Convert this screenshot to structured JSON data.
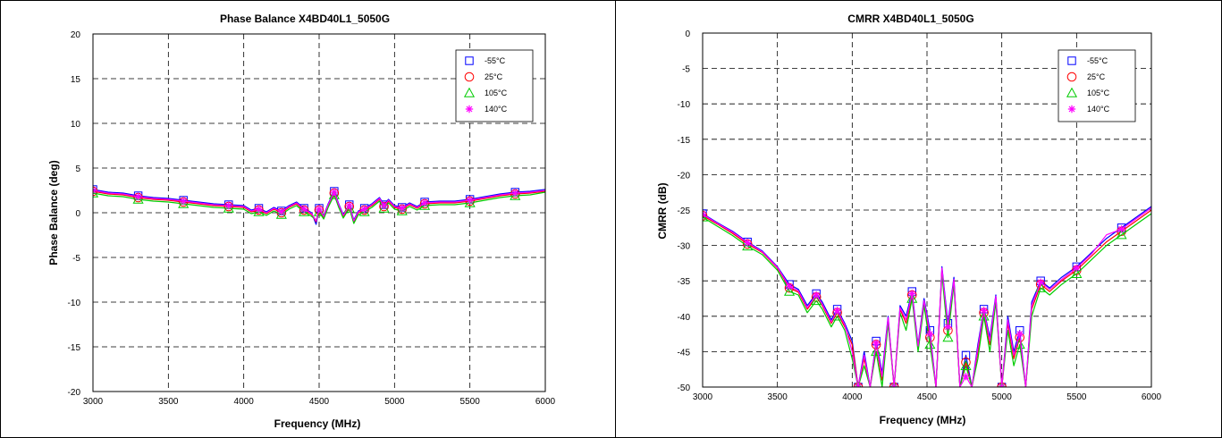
{
  "chart_data": [
    {
      "type": "line",
      "title": "Phase Balance  X4BD40L1_5050G",
      "xlabel": "Frequency (MHz)",
      "ylabel": "Phase Balance (deg)",
      "xlim": [
        3000,
        6000
      ],
      "ylim": [
        -20,
        20
      ],
      "xticks": [
        3000,
        3500,
        4000,
        4500,
        5000,
        5500,
        6000
      ],
      "yticks": [
        -20,
        -15,
        -10,
        -5,
        0,
        5,
        10,
        15,
        20
      ],
      "grid": true,
      "legend_position": "top-right",
      "x": [
        3000,
        3100,
        3200,
        3300,
        3400,
        3500,
        3600,
        3700,
        3800,
        3900,
        4000,
        4050,
        4100,
        4150,
        4200,
        4250,
        4300,
        4350,
        4400,
        4450,
        4480,
        4500,
        4530,
        4560,
        4600,
        4630,
        4660,
        4700,
        4730,
        4760,
        4800,
        4850,
        4900,
        4930,
        4960,
        5000,
        5050,
        5100,
        5150,
        5200,
        5300,
        5400,
        5500,
        5600,
        5700,
        5800,
        5900,
        6000
      ],
      "series": [
        {
          "name": "-55°C",
          "color": "#0000ff",
          "marker": "square",
          "values": [
            2.6,
            2.3,
            2.2,
            1.9,
            1.7,
            1.6,
            1.4,
            1.2,
            1.0,
            0.9,
            0.8,
            0.3,
            0.5,
            0.1,
            0.6,
            0.2,
            0.8,
            1.2,
            0.5,
            0.0,
            -1.3,
            0.5,
            -0.3,
            1.0,
            2.4,
            1.0,
            -0.2,
            0.9,
            -0.8,
            0.2,
            0.5,
            1.0,
            1.7,
            0.9,
            1.5,
            0.8,
            0.6,
            1.1,
            0.7,
            1.2,
            1.3,
            1.3,
            1.5,
            1.8,
            2.1,
            2.3,
            2.4,
            2.6
          ]
        },
        {
          "name": "25°C",
          "color": "#ff0000",
          "marker": "circle",
          "values": [
            2.4,
            2.1,
            2.0,
            1.7,
            1.5,
            1.4,
            1.2,
            1.0,
            0.8,
            0.7,
            0.6,
            0.1,
            0.3,
            -0.1,
            0.4,
            0.0,
            0.6,
            1.0,
            0.3,
            -0.2,
            -1.0,
            0.3,
            -0.5,
            0.8,
            2.2,
            0.8,
            -0.4,
            0.7,
            -1.0,
            0.0,
            0.3,
            0.8,
            1.5,
            0.7,
            1.3,
            0.6,
            0.4,
            0.9,
            0.5,
            1.0,
            1.1,
            1.1,
            1.3,
            1.6,
            1.9,
            2.1,
            2.2,
            2.4
          ]
        },
        {
          "name": "105°C",
          "color": "#00cc00",
          "marker": "triangle",
          "values": [
            2.2,
            1.9,
            1.8,
            1.5,
            1.3,
            1.2,
            1.0,
            0.8,
            0.6,
            0.5,
            0.4,
            -0.1,
            0.1,
            -0.3,
            0.2,
            -0.2,
            0.4,
            0.8,
            0.1,
            -0.4,
            -0.8,
            0.1,
            -0.7,
            0.6,
            2.0,
            0.6,
            -0.6,
            0.5,
            -1.2,
            -0.2,
            0.1,
            0.6,
            1.3,
            0.5,
            1.1,
            0.4,
            0.2,
            0.7,
            0.3,
            0.8,
            0.9,
            0.9,
            1.1,
            1.4,
            1.7,
            1.9,
            2.0,
            2.3
          ]
        },
        {
          "name": "140°C",
          "color": "#ff00ff",
          "marker": "star",
          "values": [
            2.5,
            2.2,
            2.1,
            1.8,
            1.6,
            1.5,
            1.3,
            1.1,
            0.9,
            0.8,
            0.7,
            0.2,
            0.4,
            0.0,
            0.5,
            0.1,
            0.7,
            1.1,
            0.4,
            -0.1,
            -0.9,
            0.4,
            -0.4,
            0.9,
            2.3,
            0.9,
            -0.3,
            0.8,
            -0.9,
            0.1,
            0.4,
            0.9,
            1.6,
            0.8,
            1.4,
            0.7,
            0.5,
            1.0,
            0.6,
            1.1,
            1.2,
            1.2,
            1.4,
            1.7,
            2.0,
            2.2,
            2.3,
            2.5
          ]
        }
      ]
    },
    {
      "type": "line",
      "title": "CMRR  X4BD40L1_5050G",
      "xlabel": "Frequency (MHz)",
      "ylabel": "CMRR (dB)",
      "xlim": [
        3000,
        6000
      ],
      "ylim": [
        -50,
        0
      ],
      "xticks": [
        3000,
        3500,
        4000,
        4500,
        5000,
        5500,
        6000
      ],
      "yticks": [
        -50,
        -45,
        -40,
        -35,
        -30,
        -25,
        -20,
        -15,
        -10,
        -5,
        0
      ],
      "grid": true,
      "legend_position": "top-right",
      "x": [
        3000,
        3100,
        3200,
        3300,
        3400,
        3500,
        3580,
        3640,
        3700,
        3760,
        3800,
        3860,
        3900,
        3950,
        4000,
        4040,
        4080,
        4120,
        4160,
        4200,
        4240,
        4280,
        4320,
        4360,
        4400,
        4440,
        4480,
        4520,
        4560,
        4600,
        4640,
        4680,
        4720,
        4760,
        4800,
        4840,
        4880,
        4920,
        4960,
        5000,
        5040,
        5080,
        5120,
        5160,
        5200,
        5260,
        5320,
        5400,
        5500,
        5600,
        5700,
        5800,
        5900,
        6000
      ],
      "series": [
        {
          "name": "-55°C",
          "color": "#0000ff",
          "marker": "square",
          "values": [
            -25.5,
            -26.8,
            -28.0,
            -29.5,
            -30.8,
            -33.0,
            -35.5,
            -36.2,
            -38.5,
            -36.8,
            -38.0,
            -40.5,
            -39.0,
            -41.0,
            -43.5,
            -50.0,
            -45.0,
            -50.0,
            -43.5,
            -48.0,
            -40.0,
            -50.0,
            -38.5,
            -40.0,
            -36.5,
            -44.0,
            -37.5,
            -42.0,
            -50.0,
            -33.0,
            -41.0,
            -34.5,
            -50.0,
            -45.5,
            -50.0,
            -44.0,
            -39.0,
            -43.0,
            -37.0,
            -50.0,
            -40.0,
            -45.0,
            -42.0,
            -50.0,
            -38.0,
            -35.0,
            -36.0,
            -34.5,
            -33.0,
            -31.0,
            -29.0,
            -27.5,
            -26.0,
            -24.5
          ]
        },
        {
          "name": "25°C",
          "color": "#ff0000",
          "marker": "circle",
          "values": [
            -25.8,
            -27.0,
            -28.3,
            -29.8,
            -31.0,
            -33.2,
            -36.0,
            -36.6,
            -39.0,
            -37.3,
            -38.5,
            -41.0,
            -39.5,
            -41.5,
            -44.0,
            -50.0,
            -46.0,
            -50.0,
            -44.0,
            -49.0,
            -40.5,
            -50.0,
            -39.0,
            -41.0,
            -37.0,
            -44.5,
            -38.0,
            -43.0,
            -50.0,
            -33.5,
            -42.0,
            -35.0,
            -50.0,
            -46.5,
            -50.0,
            -45.0,
            -39.5,
            -44.0,
            -37.5,
            -50.0,
            -41.0,
            -46.0,
            -43.0,
            -50.0,
            -39.0,
            -35.5,
            -36.5,
            -35.0,
            -33.5,
            -31.5,
            -29.5,
            -28.0,
            -26.5,
            -25.0
          ]
        },
        {
          "name": "105°C",
          "color": "#00cc00",
          "marker": "triangle",
          "values": [
            -26.0,
            -27.3,
            -28.6,
            -30.1,
            -31.3,
            -33.5,
            -36.5,
            -37.0,
            -39.5,
            -37.8,
            -39.0,
            -41.5,
            -40.0,
            -42.0,
            -46.0,
            -50.0,
            -47.0,
            -50.0,
            -45.0,
            -50.0,
            -41.0,
            -50.0,
            -39.5,
            -42.0,
            -37.5,
            -45.0,
            -38.5,
            -44.0,
            -50.0,
            -34.0,
            -43.0,
            -35.5,
            -50.0,
            -47.0,
            -50.0,
            -46.0,
            -40.0,
            -45.0,
            -38.0,
            -50.0,
            -42.0,
            -47.0,
            -44.0,
            -50.0,
            -40.0,
            -36.0,
            -37.0,
            -35.5,
            -34.0,
            -32.0,
            -30.0,
            -28.5,
            -27.0,
            -25.5
          ]
        },
        {
          "name": "140°C",
          "color": "#ff00ff",
          "marker": "star",
          "values": [
            -25.6,
            -26.9,
            -28.1,
            -29.6,
            -30.9,
            -33.1,
            -35.8,
            -36.4,
            -38.8,
            -37.0,
            -38.3,
            -40.8,
            -39.2,
            -41.2,
            -45.0,
            -50.0,
            -45.5,
            -50.0,
            -43.8,
            -48.5,
            -40.2,
            -50.0,
            -38.8,
            -40.5,
            -36.8,
            -44.2,
            -37.8,
            -42.5,
            -50.0,
            -33.2,
            -41.5,
            -34.8,
            -50.0,
            -48.5,
            -50.0,
            -44.5,
            -39.2,
            -43.5,
            -37.2,
            -50.0,
            -40.5,
            -45.5,
            -42.5,
            -50.0,
            -38.5,
            -35.2,
            -36.2,
            -34.8,
            -33.2,
            -31.2,
            -28.5,
            -27.7,
            -26.2,
            -24.7
          ]
        }
      ]
    }
  ]
}
